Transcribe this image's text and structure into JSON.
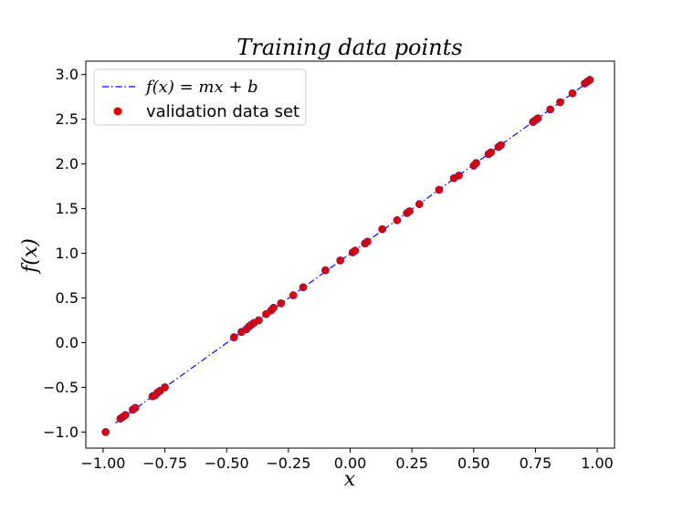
{
  "chart_data": {
    "type": "scatter",
    "title": "Training data points",
    "xlabel": "x",
    "ylabel": "f(x)",
    "xlim": [
      -1.07,
      1.07
    ],
    "ylim": [
      -1.18,
      3.15
    ],
    "xticks": [
      -1.0,
      -0.75,
      -0.5,
      -0.25,
      0.0,
      0.25,
      0.5,
      0.75,
      1.0
    ],
    "xtick_labels": [
      "−1.00",
      "−0.75",
      "−0.50",
      "−0.25",
      "0.00",
      "0.25",
      "0.50",
      "0.75",
      "1.00"
    ],
    "yticks": [
      -1.0,
      -0.5,
      0.0,
      0.5,
      1.0,
      1.5,
      2.0,
      2.5,
      3.0
    ],
    "ytick_labels": [
      "−1.0",
      "−0.5",
      "0.0",
      "0.5",
      "1.0",
      "1.5",
      "2.0",
      "2.5",
      "3.0"
    ],
    "grid": false,
    "legend_position": "top-left",
    "series": [
      {
        "name": "f(x) = mx + b",
        "kind": "line",
        "style": "dash-dot",
        "color": "#0000ff",
        "x": [
          -0.95,
          0.98
        ],
        "y": [
          -0.9,
          2.95
        ]
      },
      {
        "name": "validation data set",
        "kind": "scatter",
        "color": "#e00000",
        "edge_color": "#7a1a6a",
        "x": [
          -0.99,
          -0.93,
          -0.92,
          -0.91,
          -0.88,
          -0.87,
          -0.8,
          -0.79,
          -0.78,
          -0.77,
          -0.75,
          -0.47,
          -0.44,
          -0.42,
          -0.41,
          -0.4,
          -0.39,
          -0.37,
          -0.34,
          -0.32,
          -0.31,
          -0.28,
          -0.23,
          -0.19,
          -0.1,
          -0.04,
          0.01,
          0.02,
          0.06,
          0.07,
          0.13,
          0.19,
          0.23,
          0.24,
          0.28,
          0.36,
          0.42,
          0.44,
          0.5,
          0.51,
          0.56,
          0.57,
          0.6,
          0.61,
          0.74,
          0.75,
          0.76,
          0.81,
          0.85,
          0.9,
          0.95,
          0.96,
          0.97
        ],
        "y": [
          -1.0,
          -0.85,
          -0.83,
          -0.81,
          -0.75,
          -0.73,
          -0.6,
          -0.59,
          -0.56,
          -0.54,
          -0.5,
          0.06,
          0.12,
          0.15,
          0.18,
          0.2,
          0.22,
          0.25,
          0.32,
          0.36,
          0.39,
          0.44,
          0.53,
          0.62,
          0.81,
          0.92,
          1.01,
          1.03,
          1.11,
          1.13,
          1.27,
          1.37,
          1.45,
          1.47,
          1.55,
          1.71,
          1.84,
          1.87,
          1.98,
          2.01,
          2.11,
          2.13,
          2.19,
          2.21,
          2.47,
          2.49,
          2.51,
          2.61,
          2.69,
          2.79,
          2.9,
          2.92,
          2.94
        ]
      }
    ]
  }
}
